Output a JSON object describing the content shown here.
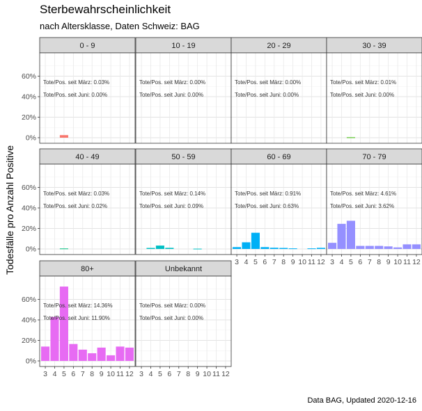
{
  "title": "Sterbewahrscheinlichkeit",
  "subtitle": "nach Altersklasse, Daten Schweiz: BAG",
  "caption": "Data BAG, Updated 2020-12-16",
  "chart_data": {
    "type": "bar",
    "facet_by": "Altersklasse",
    "ylabel": "Todesfälle pro Anzahl Positive",
    "xlabel": "",
    "ylim": [
      0,
      0.8
    ],
    "y_ticks": [
      {
        "value": 0,
        "label": "0%"
      },
      {
        "value": 0.2,
        "label": "20%"
      },
      {
        "value": 0.4,
        "label": "40%"
      },
      {
        "value": 0.6,
        "label": "60%"
      }
    ],
    "months": [
      3,
      4,
      5,
      6,
      7,
      8,
      9,
      10,
      11,
      12
    ],
    "month_labels": [
      "3",
      "4",
      "5",
      "6",
      "7",
      "8",
      "9",
      "10",
      "11",
      "12"
    ],
    "grid": true,
    "annotations_template": [
      "Tote/Pos. seit März: ",
      "Tote/Pos. seit Juni: "
    ],
    "panels": [
      {
        "label": "0 - 9",
        "color": "#F8766D",
        "ann1": "Tote/Pos. seit März: 0.03%",
        "ann2": "Tote/Pos. seit Juni: 0.00%",
        "values": [
          0,
          0,
          0.025,
          0,
          0,
          0,
          0,
          0,
          0,
          0
        ]
      },
      {
        "label": "10 - 19",
        "color": "#D89000",
        "ann1": "Tote/Pos. seit März: 0.00%",
        "ann2": "Tote/Pos. seit Juni: 0.00%",
        "values": [
          0,
          0,
          0,
          0,
          0,
          0,
          0,
          0,
          0,
          0
        ]
      },
      {
        "label": "20 - 29",
        "color": "#A3A500",
        "ann1": "Tote/Pos. seit März: 0.00%",
        "ann2": "Tote/Pos. seit Juni: 0.00%",
        "values": [
          0,
          0,
          0,
          0,
          0,
          0,
          0,
          0,
          0,
          0
        ]
      },
      {
        "label": "30 - 39",
        "color": "#39B600",
        "ann1": "Tote/Pos. seit März: 0.01%",
        "ann2": "Tote/Pos. seit Juni: 0.00%",
        "values": [
          0,
          0,
          0.004,
          0,
          0,
          0,
          0,
          0,
          0,
          0
        ]
      },
      {
        "label": "40 - 49",
        "color": "#00BF7D",
        "ann1": "Tote/Pos. seit März: 0.03%",
        "ann2": "Tote/Pos. seit Juni: 0.02%",
        "values": [
          0,
          0,
          0.005,
          0,
          0,
          0,
          0,
          0,
          0,
          0
        ]
      },
      {
        "label": "50 - 59",
        "color": "#00BFC4",
        "ann1": "Tote/Pos. seit März: 0.14%",
        "ann2": "Tote/Pos. seit Juni: 0.09%",
        "values": [
          0,
          0.01,
          0.033,
          0.011,
          0,
          0,
          0.003,
          0,
          0,
          0
        ]
      },
      {
        "label": "60 - 69",
        "color": "#00B0F6",
        "ann1": "Tote/Pos. seit März: 0.91%",
        "ann2": "Tote/Pos. seit Juni: 0.63%",
        "values": [
          0.018,
          0.065,
          0.158,
          0.018,
          0.012,
          0.01,
          0.006,
          0,
          0.006,
          0.011
        ]
      },
      {
        "label": "70 - 79",
        "color": "#9590FF",
        "ann1": "Tote/Pos. seit März: 4.61%",
        "ann2": "Tote/Pos. seit Juni: 3.62%",
        "values": [
          0.06,
          0.245,
          0.275,
          0.03,
          0.03,
          0.03,
          0.025,
          0.015,
          0.045,
          0.045
        ]
      },
      {
        "label": "80+",
        "color": "#E76BF3",
        "ann1": "Tote/Pos. seit März: 14.36%",
        "ann2": "Tote/Pos. seit Juni: 11.90%",
        "values": [
          0.14,
          0.43,
          0.725,
          0.165,
          0.11,
          0.075,
          0.13,
          0.055,
          0.14,
          0.13
        ]
      },
      {
        "label": "Unbekannt",
        "color": "#FF62BC",
        "ann1": "Tote/Pos. seit März: 0.00%",
        "ann2": "Tote/Pos. seit Juni: 0.00%",
        "values": [
          0,
          0,
          0,
          0,
          0,
          0,
          0,
          0,
          0,
          0
        ]
      }
    ]
  }
}
